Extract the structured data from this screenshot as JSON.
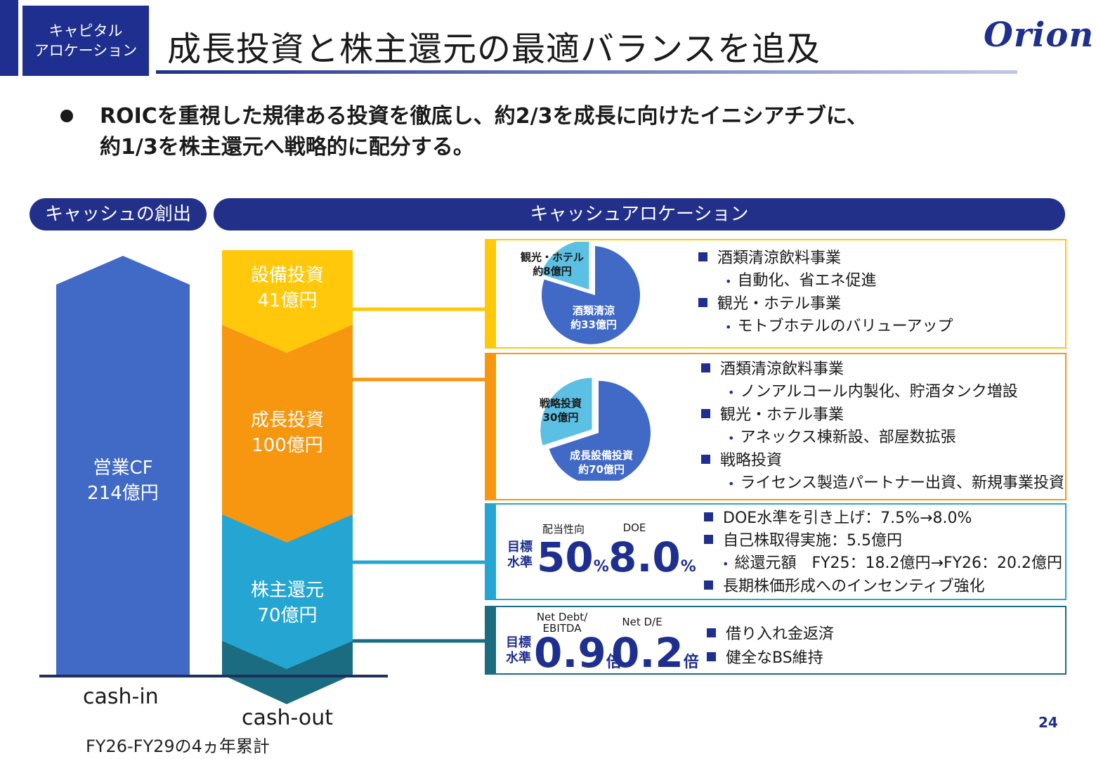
{
  "header": {
    "tag_line1": "キャピタル",
    "tag_line2": "アロケーション",
    "title": "成長投資と株主還元の最適バランスを追及",
    "logo": "Orion",
    "brand_color": "#1f2f8f"
  },
  "bullet": {
    "line1": "ROICを重視した規律ある投資を徹底し、約2/3を成長に向けたイニシアチブに、",
    "line2": "約1/3を株主還元へ戦略的に配分する。"
  },
  "sections": {
    "cash_creation": "キャッシュの創出",
    "cash_allocation": "キャッシュアロケーション"
  },
  "cash_in": {
    "line1": "営業CF",
    "line2": "214億円",
    "label": "cash-in",
    "value": 214
  },
  "cash_out": {
    "label": "cash-out",
    "period": "FY26-FY29の4ヵ年累計",
    "segments": [
      {
        "name": "設備投資",
        "amount": "41億円",
        "value": 41,
        "color": "#ffc80a"
      },
      {
        "name": "成長投資",
        "amount": "100億円",
        "value": 100,
        "color": "#f7960f"
      },
      {
        "name": "株主還元",
        "amount": "70億円",
        "value": 70,
        "color": "#25a6d2"
      }
    ]
  },
  "capex_box": {
    "pie": [
      {
        "label1": "酒類清涼",
        "label2": "約33億円",
        "value": 33,
        "color": "#4169c6"
      },
      {
        "label1": "観光・ホテル",
        "label2": "約8億円",
        "value": 8,
        "color": "#5bc0e4"
      }
    ],
    "items": [
      {
        "heading": "酒類清涼飲料事業",
        "sub": "自動化、省エネ促進"
      },
      {
        "heading": "観光・ホテル事業",
        "sub": "モトブホテルのバリューアップ"
      }
    ]
  },
  "growth_box": {
    "pie": [
      {
        "label1": "成長設備投資",
        "label2": "約70億円",
        "value": 70,
        "color": "#4169c6"
      },
      {
        "label1": "戦略投資",
        "label2": "30億円",
        "value": 30,
        "color": "#5bc0e4"
      }
    ],
    "items": [
      {
        "heading": "酒類清涼飲料事業",
        "sub": "ノンアルコール内製化、貯酒タンク増設"
      },
      {
        "heading": "観光・ホテル事業",
        "sub": "アネックス棟新設、部屋数拡張"
      },
      {
        "heading": "戦略投資",
        "sub": "ライセンス製造パートナー出資、新規事業投資"
      }
    ]
  },
  "shareholder_box": {
    "target_label1": "目標",
    "target_label2": "水準",
    "kpi1_caption": "配当性向",
    "kpi1_value": "50",
    "kpi1_unit": "%",
    "kpi2_caption": "DOE",
    "kpi2_value": "8.0",
    "kpi2_unit": "%",
    "items": [
      "DOE水準を引き上げ：7.5%→8.0%",
      "自己株取得実施：5.5億円"
    ],
    "sub": "総還元額　FY25：18.2億円→FY26：20.2億円",
    "item_last": "長期株価形成へのインセンティブ強化"
  },
  "debt_box": {
    "target_label1": "目標",
    "target_label2": "水準",
    "kpi1_caption1": "Net Debt/",
    "kpi1_caption2": "EBITDA",
    "kpi1_value": "0.9",
    "kpi1_unit": "倍",
    "kpi2_caption": "Net D/E",
    "kpi2_value": "0.2",
    "kpi2_unit": "倍",
    "items": [
      "借り入れ金返済",
      "健全なBS維持"
    ]
  },
  "page_number": "24"
}
